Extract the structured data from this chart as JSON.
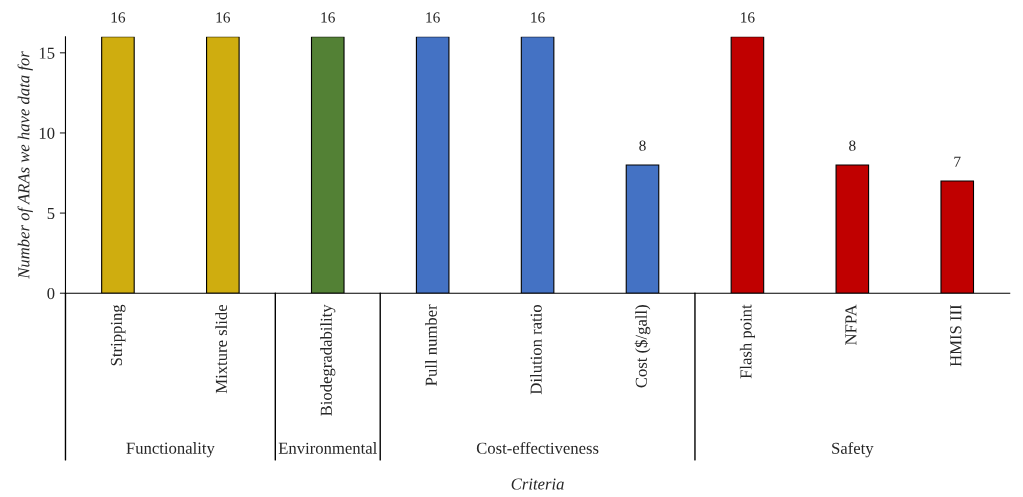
{
  "chart_data": {
    "type": "bar",
    "categories": [
      "Stripping",
      "Mixture slide",
      "Biodegradability",
      "Pull number",
      "Dilution ratio",
      "Cost ($/gall)",
      "Flash point",
      "NFPA",
      "HMIS III"
    ],
    "values": [
      16,
      16,
      16,
      16,
      16,
      8,
      16,
      8,
      7
    ],
    "colors": [
      "#cfad0f",
      "#cfad0f",
      "#538135",
      "#4472c4",
      "#4472c4",
      "#4472c4",
      "#c00000",
      "#c00000",
      "#c00000"
    ],
    "ylabel": "Number of ARAs we have data for",
    "xlabel": "Criteria",
    "annotations": [
      "Functionality",
      "Environmental",
      "Cost-effectiveness",
      "Safety"
    ],
    "ylim": [
      0,
      16
    ],
    "yticks": [
      0,
      5,
      10,
      15
    ],
    "data_labels": true,
    "grid": false,
    "legend": false
  }
}
